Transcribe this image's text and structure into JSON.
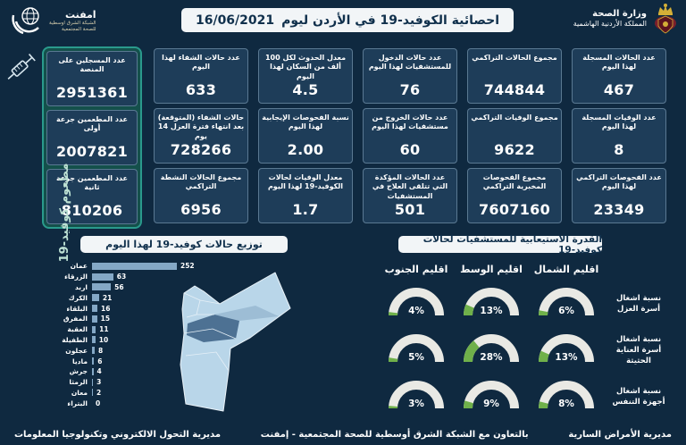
{
  "header": {
    "title": "احصائية الكوفيد-19 في الأردن ليوم",
    "date": "16/06/2021",
    "ministry_name": "وزارة الصحة",
    "ministry_sub": "المملكة الأردنية الهاشمية",
    "emphnet_name": "امفنت",
    "emphnet_sub1": "الشبكة الشرق اوسطية",
    "emphnet_sub2": "للصحة المجتمعية"
  },
  "stats": {
    "rows": [
      [
        {
          "label": "عدد الحالات المسجلة لهذا اليوم",
          "value": "467"
        },
        {
          "label": "مجموع الحالات التراكمي",
          "value": "744844"
        },
        {
          "label": "عدد حالات الدخول للمستشفيات لهذا اليوم",
          "value": "76"
        },
        {
          "label": "معدل الحدوث لكل 100 ألف من السكان لهذا اليوم",
          "value": "4.5"
        },
        {
          "label": "عدد حالات الشفاء لهذا اليوم",
          "value": "633"
        }
      ],
      [
        {
          "label": "عدد الوفيات المسجلة لهذا اليوم",
          "value": "8"
        },
        {
          "label": "مجموع الوفيات التراكمي",
          "value": "9622"
        },
        {
          "label": "عدد حالات الخروج من مستشفيات لهذا اليوم",
          "value": "60"
        },
        {
          "label": "نسبة الفحوصات الإيجابية لهذا اليوم",
          "value": "2.00"
        },
        {
          "label": "حالات الشفاء (المتوقعة) بعد انتهاء فترة العزل 14 يوم",
          "value": "728266"
        }
      ],
      [
        {
          "label": "عدد الفحوصات التراكمي لهذا اليوم",
          "value": "23349"
        },
        {
          "label": "مجموع الفحوصات المخبرية التراكمي",
          "value": "7607160"
        },
        {
          "label": "عدد الحالات المؤكدة التي تتلقى العلاج في المستشفيات",
          "value": "501"
        },
        {
          "label": "معدل الوفيات لحالات الكوفيد-19 لهذا اليوم",
          "value": "1.7"
        },
        {
          "label": "مجموع الحالات النشطة التراكمي",
          "value": "6956"
        }
      ]
    ]
  },
  "vaccination": {
    "banner": "مطعوم كوفيد-19",
    "cards": [
      {
        "label": "عدد المسجلين على المنصة",
        "value": "2951361"
      },
      {
        "label": "عدد المطعمين جرعة أولى",
        "value": "2007821"
      },
      {
        "label": "عدد المطعمين جرعة ثانية",
        "value": "810206"
      }
    ]
  },
  "chart_data": [
    {
      "type": "bar",
      "orientation": "horizontal",
      "title": "توزيع حالات كوفيد-19 لهذا اليوم",
      "categories": [
        "عمان",
        "الزرقاء",
        "اربد",
        "الكرك",
        "البلقاء",
        "المفرق",
        "العقبة",
        "الطفيلة",
        "عجلون",
        "ماديا",
        "جرش",
        "الرمثا",
        "معان",
        "البتراء"
      ],
      "values": [
        252,
        63,
        56,
        21,
        16,
        15,
        11,
        10,
        8,
        6,
        4,
        3,
        2,
        0
      ],
      "xlim": [
        0,
        260
      ],
      "bar_color": "#84a8c6"
    },
    {
      "type": "gauge",
      "title": "القدرة الاستيعابية للمستشفيات لحالات كوفيد-19",
      "regions": [
        "اقليم الشمال",
        "اقليم الوسط",
        "اقليم الجنوب"
      ],
      "rows": [
        {
          "label": "نسبة اشغال أسرة العزل",
          "values": [
            6,
            13,
            4
          ]
        },
        {
          "label": "نسبة اشغال أسرة العناية الحثيثة",
          "values": [
            13,
            28,
            5
          ]
        },
        {
          "label": "نسبة اشغال أجهزة التنفس",
          "values": [
            8,
            9,
            3
          ]
        }
      ],
      "unit": "%",
      "gauge_range": [
        0,
        100
      ],
      "fill_color": "#6fb04a",
      "track_color": "#e9e9e4"
    }
  ],
  "footer": {
    "right": "مديرية الأمراض السارية",
    "center": "بالتعاون مع الشبكة الشرق أوسطية للصحة المجتمعية - إمفنت",
    "left": "مديرية التحول الالكتروني وتكنولوجيا المعلومات"
  },
  "colors": {
    "background": "#0f2940",
    "card": "#1e3d59",
    "teal_panel_border": "#2a9a8c",
    "teal_panel_fill": "#14504b",
    "bar": "#84a8c6",
    "gauge_green": "#6fb04a",
    "gauge_track": "#e9e9e4",
    "map_light": "#b9d6e9",
    "map_mid": "#9dbdd5",
    "map_dark": "#4d7193"
  }
}
